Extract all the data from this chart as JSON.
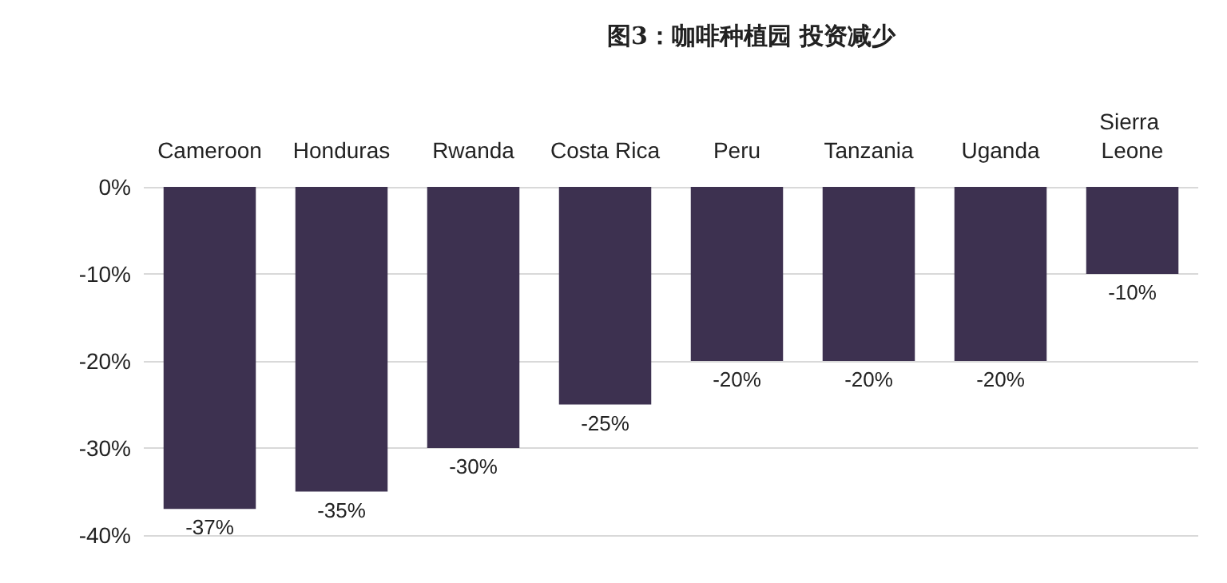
{
  "chart_data": {
    "type": "bar",
    "title": "图3：咖啡种植园 投资减少",
    "categories": [
      "Cameroon",
      "Honduras",
      "Rwanda",
      "Costa Rica",
      "Peru",
      "Tanzania",
      "Uganda",
      "Sierra Leone"
    ],
    "values": [
      -37,
      -35,
      -30,
      -25,
      -20,
      -20,
      -20,
      -10
    ],
    "value_labels": [
      "-37%",
      "-35%",
      "-30%",
      "-25%",
      "-20%",
      "-20%",
      "-20%",
      "-10%"
    ],
    "color": "#3d3150",
    "ylim": [
      -40,
      0
    ],
    "yticks": [
      {
        "value": 0,
        "label": "0%"
      },
      {
        "value": -10,
        "label": "-10%"
      },
      {
        "value": -20,
        "label": "-20%"
      },
      {
        "value": -30,
        "label": "-30%"
      },
      {
        "value": -40,
        "label": "-40%"
      }
    ],
    "grid": "y"
  }
}
